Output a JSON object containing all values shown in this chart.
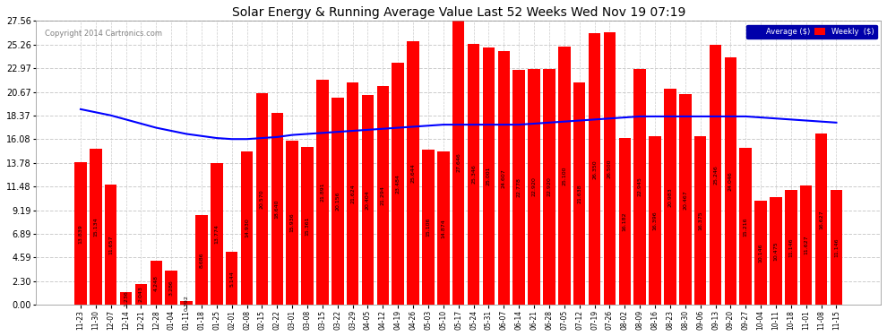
{
  "title": "Solar Energy & Running Average Value Last 52 Weeks Wed Nov 19 07:19",
  "copyright": "Copyright 2014 Cartronics.com",
  "bar_color": "#ff0000",
  "avg_line_color": "#0000ff",
  "background_color": "#ffffff",
  "grid_color": "#cccccc",
  "yticks": [
    0.0,
    2.3,
    4.59,
    6.89,
    9.19,
    11.48,
    13.78,
    16.08,
    18.37,
    20.67,
    22.97,
    25.26,
    27.56
  ],
  "legend_avg_bg": "#0000aa",
  "legend_weekly_color": "#ff0000",
  "categories": [
    "11-23",
    "11-30",
    "12-07",
    "12-14",
    "12-21",
    "12-28",
    "01-04",
    "01-11",
    "01-18",
    "01-25",
    "02-01",
    "02-08",
    "02-15",
    "02-22",
    "03-01",
    "03-08",
    "03-15",
    "03-22",
    "03-29",
    "04-05",
    "04-12",
    "04-19",
    "04-26",
    "05-03",
    "05-10",
    "05-17",
    "05-24",
    "05-31",
    "06-07",
    "06-14",
    "06-21",
    "06-28",
    "07-05",
    "07-12",
    "07-19",
    "07-26",
    "08-02",
    "08-09",
    "08-16",
    "08-23",
    "08-30",
    "09-06",
    "09-13",
    "09-20",
    "09-27",
    "10-04",
    "10-11",
    "10-18",
    "11-01",
    "11-08",
    "11-15"
  ],
  "values": [
    13.839,
    15.134,
    11.657,
    1.236,
    2.043,
    4.248,
    3.286,
    0.392,
    8.686,
    13.774,
    5.1439,
    14.93,
    20.57,
    18.64,
    15.936,
    15.361,
    21.891,
    20.156,
    21.624,
    20.404,
    21.294,
    23.484,
    25.644,
    15.1064,
    14.874,
    27.646,
    25.346,
    25.001,
    24.607,
    22.778,
    22.92,
    22.92,
    25.1,
    21.638,
    26.35,
    26.5,
    16.182,
    22.945,
    16.396,
    20.983,
    20.467,
    16.375,
    25.246,
    24.046,
    15.216,
    10.146,
    10.475,
    11.146,
    11.627,
    16.627,
    11.146
  ],
  "avg_values": [
    19.0,
    18.7,
    18.4,
    18.0,
    17.6,
    17.2,
    16.9,
    16.6,
    16.4,
    16.2,
    16.1,
    16.1,
    16.2,
    16.3,
    16.5,
    16.6,
    16.7,
    16.8,
    16.9,
    17.0,
    17.1,
    17.2,
    17.3,
    17.4,
    17.5,
    17.5,
    17.5,
    17.5,
    17.5,
    17.5,
    17.6,
    17.7,
    17.8,
    17.9,
    18.0,
    18.1,
    18.2,
    18.3,
    18.3,
    18.3,
    18.3,
    18.3,
    18.3,
    18.3,
    18.3,
    18.2,
    18.1,
    18.0,
    17.9,
    17.8,
    17.7
  ]
}
